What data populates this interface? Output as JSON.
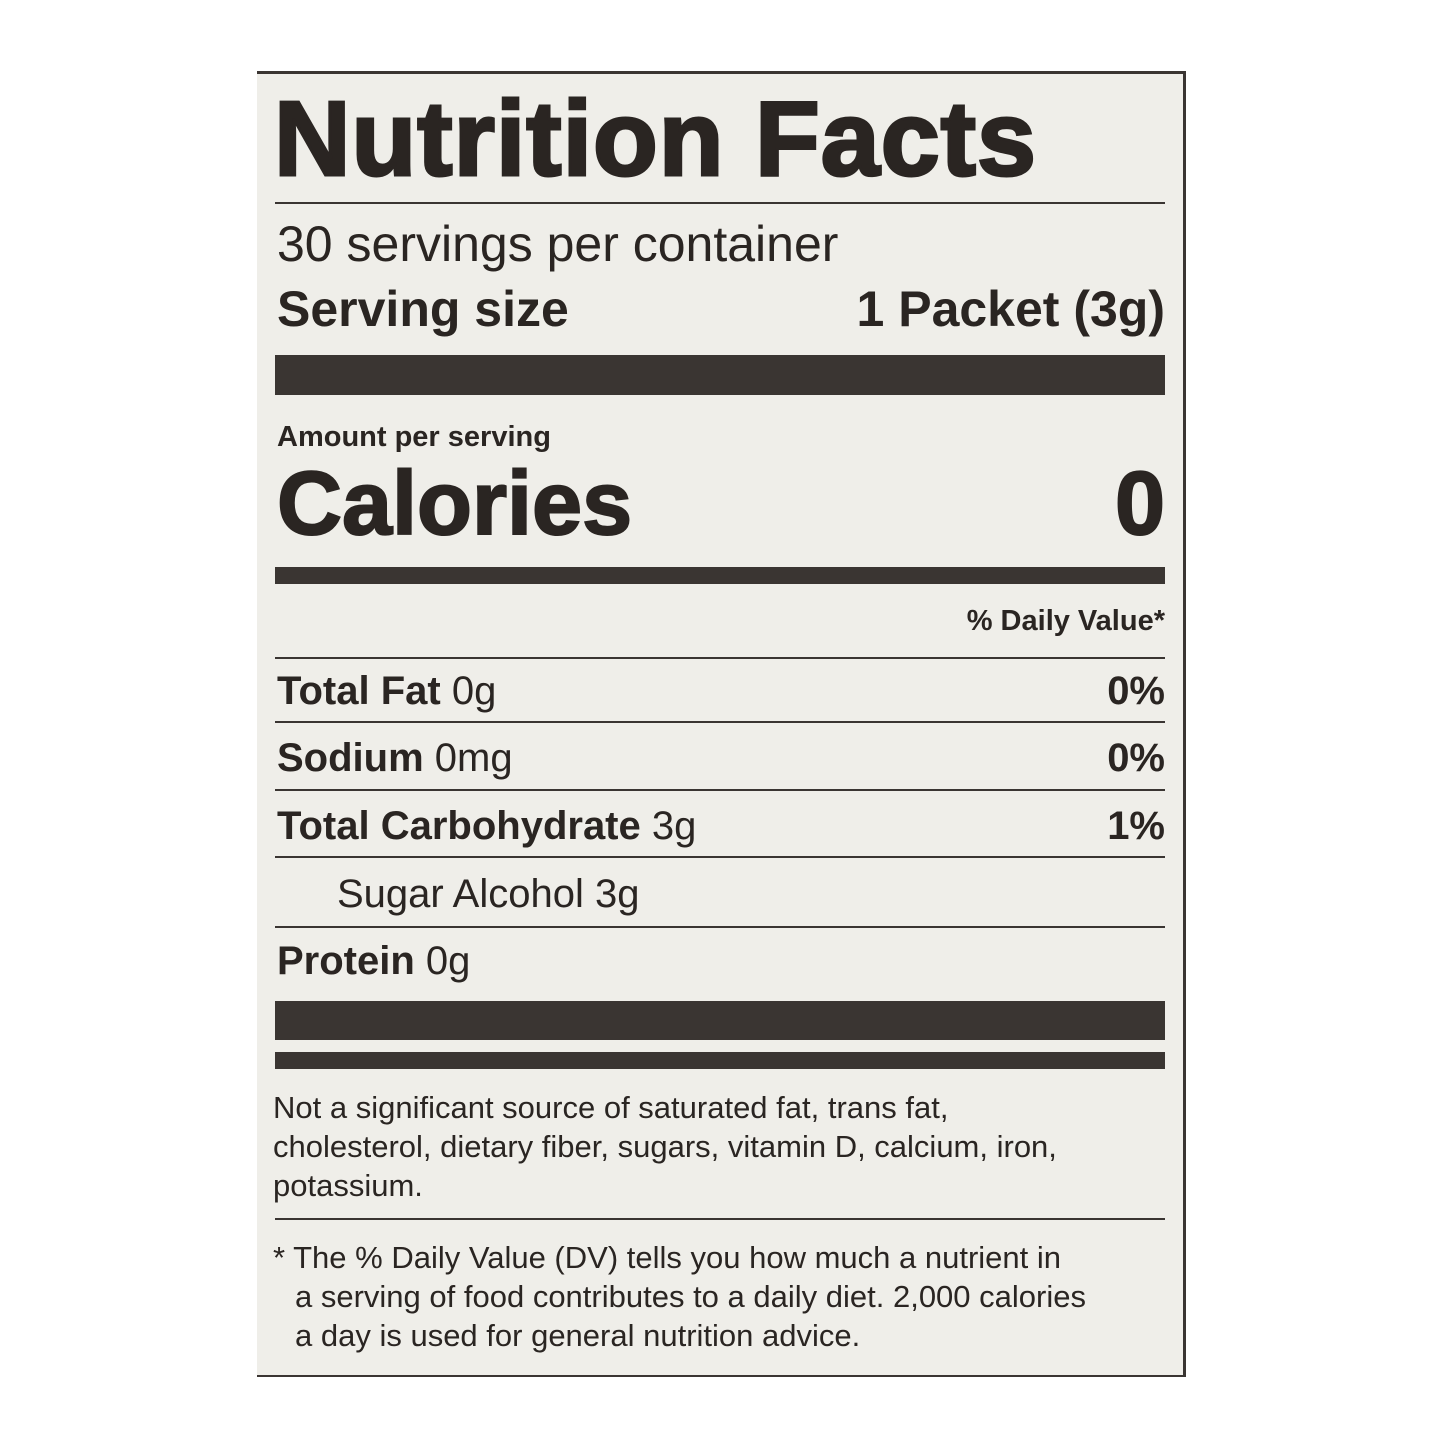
{
  "title": "Nutrition Facts",
  "servings_per_container": "30 servings per container",
  "serving_size": {
    "label": "Serving size",
    "value": "1 Packet (3g)"
  },
  "amount_per_serving": "Amount per serving",
  "calories": {
    "label": "Calories",
    "value": "0"
  },
  "daily_value_header": "% Daily Value*",
  "nutrients": [
    {
      "name": "Total Fat",
      "amount": "0g",
      "dv": "0%"
    },
    {
      "name": "Sodium",
      "amount": "0mg",
      "dv": "0%"
    },
    {
      "name": "Total Carbohydrate",
      "amount": "3g",
      "dv": "1%"
    },
    {
      "name": "Sugar Alcohol 3g",
      "amount": "",
      "dv": ""
    },
    {
      "name": "Protein",
      "amount": "0g",
      "dv": ""
    }
  ],
  "not_significant": [
    "Not a significant source of saturated fat, trans fat,",
    "cholesterol, dietary fiber, sugars, vitamin D, calcium, iron,",
    "potassium."
  ],
  "footnote": [
    "* The % Daily Value (DV) tells you how much a nutrient in",
    "a serving of food contributes to a daily diet. 2,000 calories",
    "a day is used for general nutrition advice."
  ]
}
